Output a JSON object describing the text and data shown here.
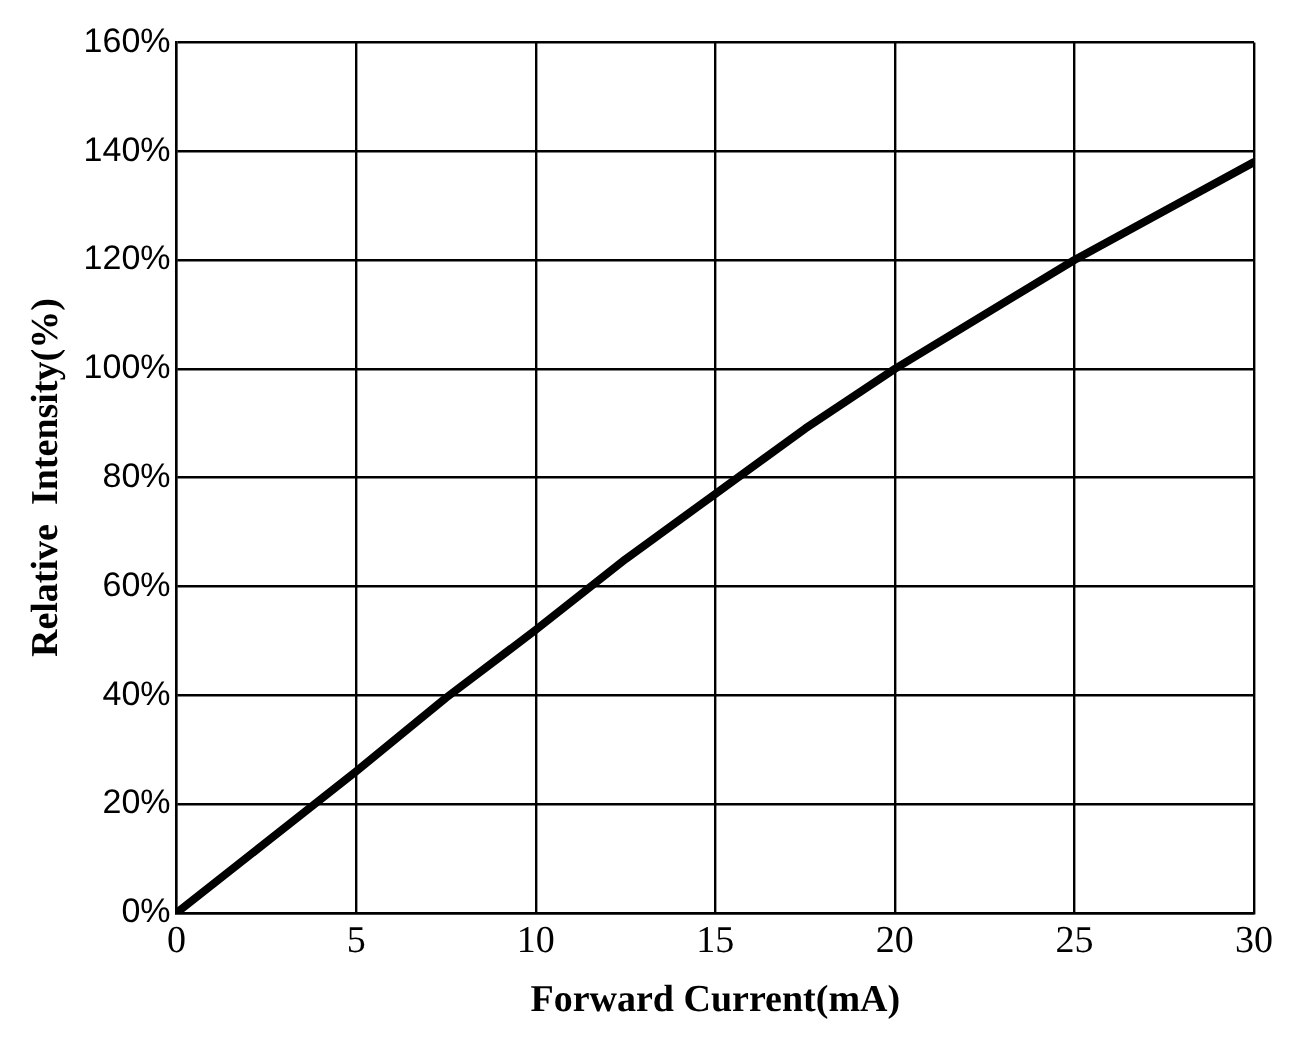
{
  "chart_data": {
    "type": "line",
    "xlabel": "Forward Current(mA)",
    "ylabel": "Relative  Intensity(%)",
    "x": [
      0,
      2.5,
      5,
      7.5,
      10,
      12.5,
      15,
      17.5,
      20,
      22.5,
      25,
      27.5,
      30
    ],
    "series": [
      {
        "color": "#000000",
        "values": [
          0,
          13,
          26,
          39.5,
          52,
          65,
          77,
          89,
          100,
          110,
          120,
          129,
          138
        ]
      }
    ],
    "xlim": [
      0,
      30
    ],
    "xticks": [
      0,
      5,
      10,
      15,
      20,
      25,
      30
    ],
    "ylim": [
      0,
      160
    ],
    "yticks": [
      {
        "value": 0,
        "label": "0%"
      },
      {
        "value": 20,
        "label": "20%"
      },
      {
        "value": 40,
        "label": "40%"
      },
      {
        "value": 60,
        "label": "60%"
      },
      {
        "value": 80,
        "label": "80%"
      },
      {
        "value": 100,
        "label": "100%"
      },
      {
        "value": 120,
        "label": "120%"
      },
      {
        "value": 140,
        "label": "140%"
      },
      {
        "value": 160,
        "label": "160%"
      }
    ],
    "grid": true,
    "legend": false,
    "marker": "none",
    "line_style": "solid"
  }
}
